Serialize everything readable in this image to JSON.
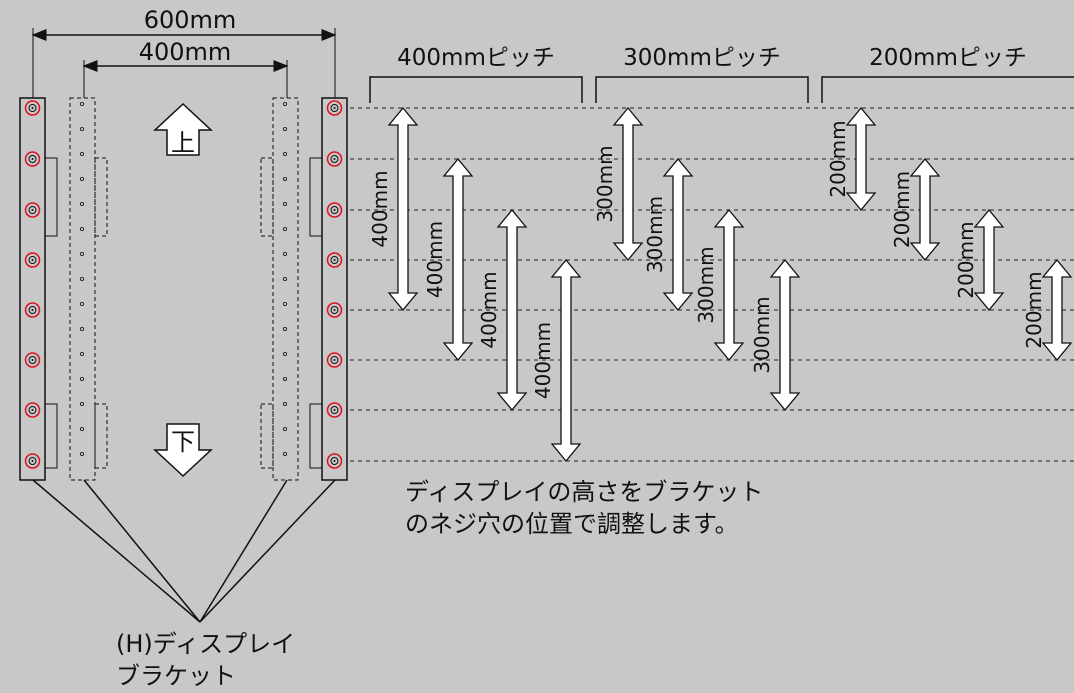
{
  "dimensions": {
    "outer_width": "600mm",
    "inner_width": "400mm"
  },
  "direction": {
    "up": "上",
    "down": "下"
  },
  "pitch_groups": [
    {
      "header": "400mmピッチ",
      "arrow_label": "400mm",
      "arrows": 4
    },
    {
      "header": "300mmピッチ",
      "arrow_label": "300mm",
      "arrows": 4
    },
    {
      "header": "200mmピッチ",
      "arrow_label": "200mm",
      "arrows": 4
    }
  ],
  "note": {
    "line1": "ディスプレイの高さをブラケット",
    "line2": "のネジ穴の位置で調整します。"
  },
  "bracket_label": {
    "line1": "(H)ディスプレイ",
    "line2": "ブラケット"
  },
  "colors": {
    "background": "#c8c8c8",
    "line": "#111111",
    "hole_highlight": "#e01020",
    "arrow_fill": "#ffffff"
  }
}
